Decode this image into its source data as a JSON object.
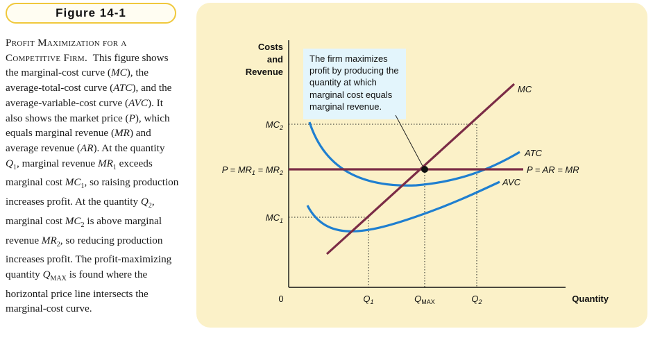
{
  "figure_label": "Figure 14-1",
  "caption": {
    "title": "Profit Maximization for a Competitive Firm.",
    "body_parts": [
      {
        "t": "This figure shows the marginal-cost curve (",
        "i": false
      },
      {
        "t": "MC",
        "i": true
      },
      {
        "t": "), the average-total-cost curve (",
        "i": false
      },
      {
        "t": "ATC",
        "i": true
      },
      {
        "t": "), and the average-variable-cost curve (",
        "i": false
      },
      {
        "t": "AVC",
        "i": true
      },
      {
        "t": "). It also shows the market price (",
        "i": false
      },
      {
        "t": "P",
        "i": true
      },
      {
        "t": "), which equals marginal revenue (",
        "i": false
      },
      {
        "t": "MR",
        "i": true
      },
      {
        "t": ") and average revenue (",
        "i": false
      },
      {
        "t": "AR",
        "i": true
      },
      {
        "t": "). At the quantity ",
        "i": false
      },
      {
        "t": "Q",
        "i": true,
        "sub": "1"
      },
      {
        "t": ", marginal revenue ",
        "i": false
      },
      {
        "t": "MR",
        "i": true,
        "sub": "1"
      },
      {
        "t": " exceeds marginal cost ",
        "i": false
      },
      {
        "t": "MC",
        "i": true,
        "sub": "1"
      },
      {
        "t": ", so raising production increases profit. At the quantity ",
        "i": false
      },
      {
        "t": "Q",
        "i": true,
        "sub": "2"
      },
      {
        "t": ", marginal cost ",
        "i": false
      },
      {
        "t": "MC",
        "i": true,
        "sub": "2"
      },
      {
        "t": " is above marginal revenue ",
        "i": false
      },
      {
        "t": "MR",
        "i": true,
        "sub": "2"
      },
      {
        "t": ", so reducing production increases profit. The profit-maximizing quantity ",
        "i": false
      },
      {
        "t": "Q",
        "i": true,
        "sub": "MAX"
      },
      {
        "t": " is found where the horizontal price line intersects the marginal-cost curve.",
        "i": false
      }
    ]
  },
  "chart": {
    "y_axis_label": [
      "Costs",
      "and",
      "Revenue"
    ],
    "x_axis_label": "Quantity",
    "origin_label": "0",
    "note": "The firm maximizes profit by producing the quantity at which marginal cost equals marginal revenue.",
    "y_ticks": [
      {
        "name": "mc2",
        "main": "MC",
        "sub": "2"
      },
      {
        "name": "price",
        "main": "P = MR",
        "sub": "1",
        "rest": " = MR",
        "sub2": "2"
      },
      {
        "name": "mc1",
        "main": "MC",
        "sub": "1"
      }
    ],
    "x_ticks": [
      {
        "name": "q1",
        "main": "Q",
        "sub": "1"
      },
      {
        "name": "qmax",
        "main": "Q",
        "sub": "MAX"
      },
      {
        "name": "q2",
        "main": "Q",
        "sub": "2"
      }
    ],
    "curve_labels": {
      "mc": "MC",
      "atc": "ATC",
      "avc": "AVC",
      "price": "P = AR = MR"
    },
    "colors": {
      "mc": "#7b2c46",
      "atc": "#1f7fd0",
      "avc": "#1f7fd0",
      "price": "#7b2c46",
      "panel": "#fbf1c8",
      "note": "#e3f5fc",
      "frame": "#f0c83c"
    }
  }
}
